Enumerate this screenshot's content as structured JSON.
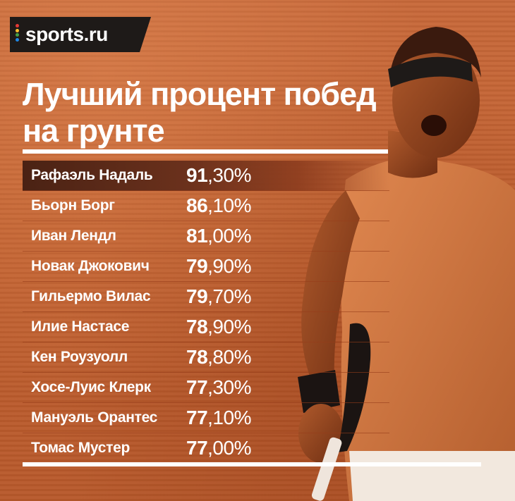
{
  "brand": {
    "logo_text": "sports.ru",
    "dot_colors": [
      "#e53935",
      "#fbc02d",
      "#43a047",
      "#1e88e5"
    ]
  },
  "title_line1": "Лучший процент побед",
  "title_line2": "на грунте",
  "rows": [
    {
      "name": "Рафаэль Надаль",
      "int": "91",
      "frac": ",30%"
    },
    {
      "name": "Бьорн Борг",
      "int": "86",
      "frac": ",10%"
    },
    {
      "name": "Иван Лендл",
      "int": "81",
      "frac": ",00%"
    },
    {
      "name": "Новак Джокович",
      "int": "79",
      "frac": ",90%"
    },
    {
      "name": "Гильермо Вилас",
      "int": "79",
      "frac": ",70%"
    },
    {
      "name": "Илие Настасе",
      "int": "78",
      "frac": ",90%"
    },
    {
      "name": "Кен Роузуолл",
      "int": "78",
      "frac": ",80%"
    },
    {
      "name": "Хосе-Луис Клерк",
      "int": "77",
      "frac": ",30%"
    },
    {
      "name": "Мануэль Орантес",
      "int": "77",
      "frac": ",10%"
    },
    {
      "name": "Томас Мустер",
      "int": "77",
      "frac": ",00%"
    }
  ],
  "colors": {
    "background": "#c06030",
    "highlight_row": "#4a2214",
    "text": "#ffffff"
  }
}
